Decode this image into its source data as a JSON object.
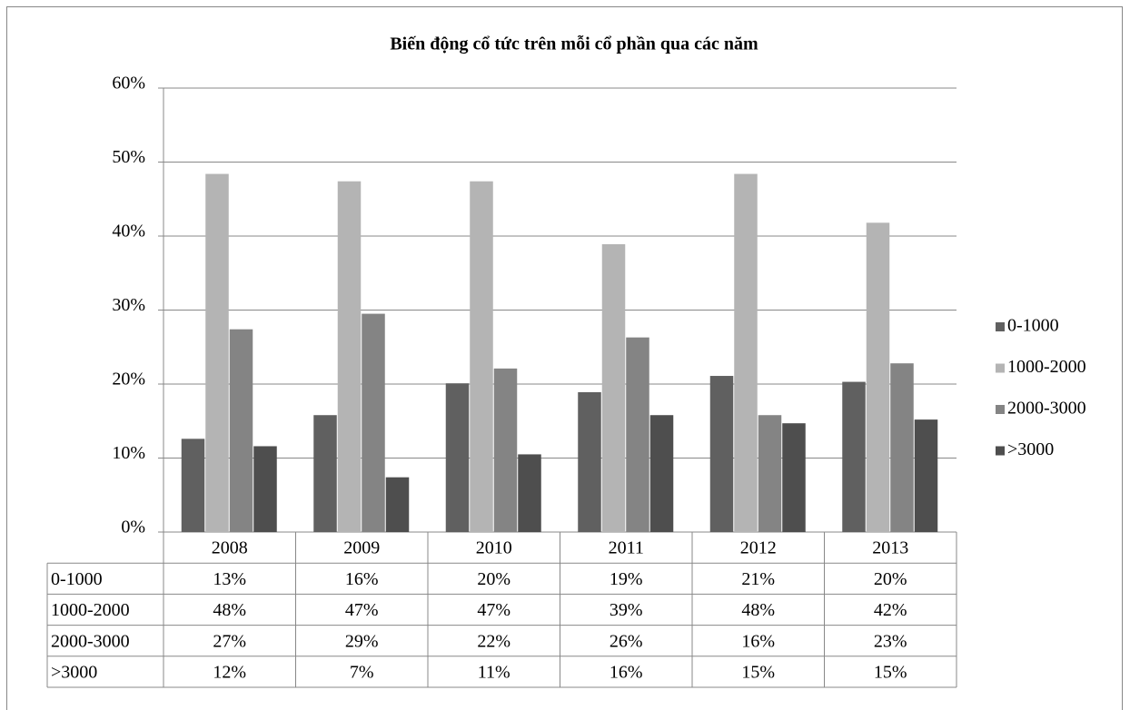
{
  "chart_data": {
    "type": "bar",
    "title": "Biến động cổ tức trên mỗi cổ phần qua các năm",
    "categories": [
      "2008",
      "2009",
      "2010",
      "2011",
      "2012",
      "2013"
    ],
    "series": [
      {
        "name": "0-1000",
        "color": "#606060",
        "values": [
          12.6,
          15.8,
          20.1,
          18.9,
          21.1,
          20.3
        ],
        "value_labels": [
          "13%",
          "16%",
          "20%",
          "19%",
          "21%",
          "20%"
        ]
      },
      {
        "name": "1000-2000",
        "color": "#b4b4b4",
        "values": [
          48.4,
          47.4,
          47.4,
          38.9,
          48.4,
          41.8
        ],
        "value_labels": [
          "48%",
          "47%",
          "47%",
          "39%",
          "48%",
          "42%"
        ]
      },
      {
        "name": "2000-3000",
        "color": "#848484",
        "values": [
          27.4,
          29.5,
          22.1,
          26.3,
          15.8,
          22.8
        ],
        "value_labels": [
          "27%",
          "29%",
          "22%",
          "26%",
          "16%",
          "23%"
        ]
      },
      {
        "name": ">3000",
        "color": "#4e4e4e",
        "values": [
          11.6,
          7.4,
          10.5,
          15.8,
          14.7,
          15.2
        ],
        "value_labels": [
          "12%",
          "7%",
          "11%",
          "16%",
          "15%",
          "15%"
        ]
      }
    ],
    "ylim": [
      0,
      60
    ],
    "yticks": [
      {
        "value": 0,
        "label": "0%"
      },
      {
        "value": 10,
        "label": "10%"
      },
      {
        "value": 20,
        "label": "20%"
      },
      {
        "value": 30,
        "label": "30%"
      },
      {
        "value": 40,
        "label": "40%"
      },
      {
        "value": 50,
        "label": "50%"
      },
      {
        "value": 60,
        "label": "60%"
      }
    ],
    "grid": true,
    "legend": "right"
  }
}
